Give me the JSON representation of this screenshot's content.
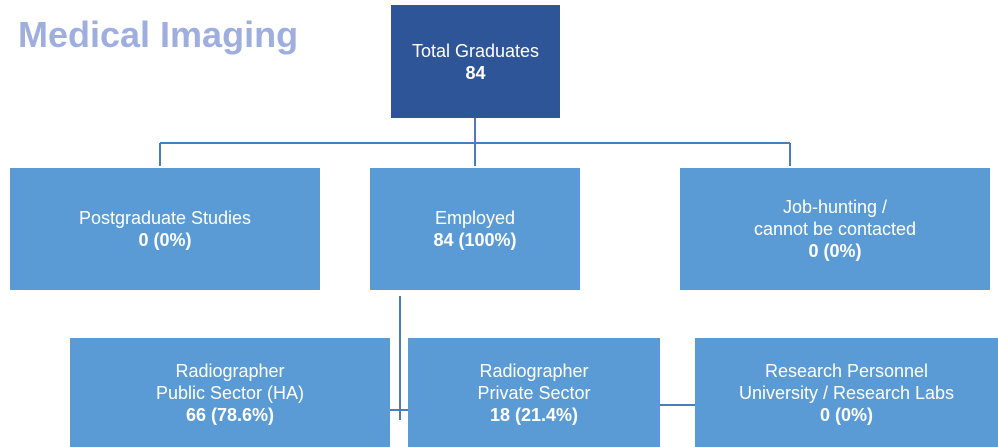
{
  "title": "Medical Imaging",
  "nodes": [
    {
      "lines": [
        "Total Graduates"
      ],
      "value": "84"
    },
    {
      "lines": [
        "Postgraduate Studies"
      ],
      "value": "0 (0%)"
    },
    {
      "lines": [
        "Employed"
      ],
      "value": "84 (100%)"
    },
    {
      "lines": [
        "Job-hunting /",
        "cannot be contacted"
      ],
      "value": "0 (0%)"
    },
    {
      "lines": [
        "Radiographer",
        "Public Sector (HA)"
      ],
      "value": "66 (78.6%)"
    },
    {
      "lines": [
        "Radiographer",
        "Private Sector"
      ],
      "value": "18 (21.4%)"
    },
    {
      "lines": [
        "Research Personnel",
        "University / Research Labs"
      ],
      "value": "0 (0%)"
    }
  ]
}
